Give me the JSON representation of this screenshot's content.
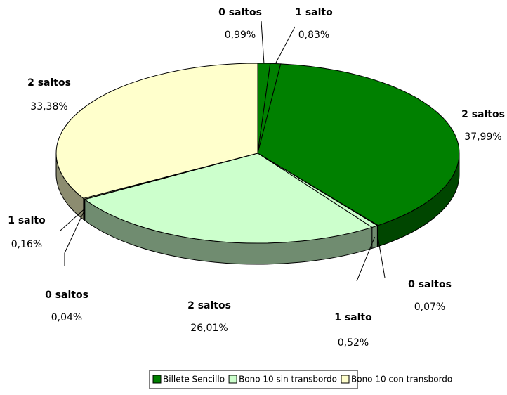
{
  "chart_data": {
    "type": "pie",
    "series": [
      {
        "name": "Billete Sencillo",
        "color": "#008000",
        "categories": [
          "0 saltos",
          "1 salto",
          "2 saltos"
        ],
        "values": [
          0.99,
          0.83,
          37.99
        ],
        "value_labels": [
          "0,99%",
          "0,83%",
          "37,99%"
        ]
      },
      {
        "name": "Bono 10 sin transbordo",
        "color": "#ccffcc",
        "categories": [
          "0 saltos",
          "1 salto",
          "2 saltos"
        ],
        "values": [
          0.07,
          0.52,
          26.01
        ],
        "value_labels": [
          "0,07%",
          "0,52%",
          "26,01%"
        ]
      },
      {
        "name": "Bono 10 con transbordo",
        "color": "#ffffcc",
        "categories": [
          "0 saltos",
          "1 salto",
          "2 saltos"
        ],
        "values": [
          0.04,
          0.16,
          33.38
        ],
        "value_labels": [
          "0,04%",
          "0,16%",
          "33,38%"
        ]
      }
    ]
  }
}
